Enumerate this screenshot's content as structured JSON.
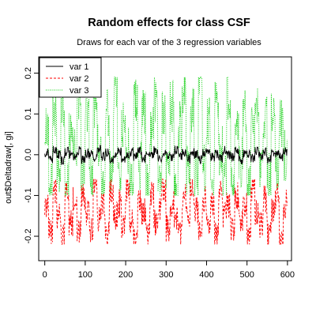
{
  "chart_data": {
    "type": "line",
    "title": "Random effects for class CSF",
    "subtitle": "Draws for each var of the 3 regression variables",
    "xlabel": "",
    "ylabel": "out$Deltadraw[, gi]",
    "xlim": [
      -15,
      610
    ],
    "ylim": [
      -0.26,
      0.24
    ],
    "x_ticks": [
      0,
      100,
      200,
      300,
      400,
      500,
      600
    ],
    "y_ticks": [
      -0.2,
      -0.1,
      0.0,
      0.1,
      0.2
    ],
    "x_tick_labels": [
      "0",
      "100",
      "200",
      "300",
      "400",
      "500",
      "600"
    ],
    "y_tick_labels": [
      "-0.2",
      "-0.1",
      "0.0",
      "0.1",
      "0.2"
    ],
    "legend_position": "top-left",
    "n_draws": 600,
    "series": [
      {
        "name": "var 1",
        "color": "#000000",
        "line_style": "solid",
        "center": 0.0,
        "approx_range": [
          -0.025,
          0.025
        ],
        "values_sampled_every_10": [
          0.005,
          -0.01,
          0.012,
          0.0,
          -0.015,
          0.008,
          0.002,
          -0.006,
          0.01,
          -0.012,
          0.004,
          0.0,
          -0.008,
          0.014,
          -0.004,
          0.006,
          -0.01,
          0.002,
          0.009,
          -0.013,
          0.0,
          0.007,
          -0.005,
          0.011,
          -0.009,
          0.003,
          -0.002,
          0.01,
          -0.011,
          0.006,
          0.0,
          -0.007,
          0.013,
          -0.003,
          0.005,
          -0.01,
          0.008,
          0.001,
          -0.012,
          0.004,
          0.009,
          -0.006,
          0.002,
          -0.009,
          0.011,
          0.0,
          -0.004,
          0.007,
          -0.013,
          0.005,
          0.003,
          -0.008,
          0.01,
          -0.002,
          0.006,
          -0.011,
          0.004,
          0.0,
          -0.006,
          0.008
        ]
      },
      {
        "name": "var 2",
        "color": "#ff0000",
        "line_style": "dashed",
        "center": -0.13,
        "approx_range": [
          -0.22,
          -0.06
        ],
        "values_sampled_every_10": [
          -0.12,
          -0.19,
          -0.09,
          -0.15,
          -0.2,
          -0.08,
          -0.17,
          -0.11,
          -0.18,
          -0.1,
          -0.14,
          -0.19,
          -0.07,
          -0.16,
          -0.13,
          -0.2,
          -0.09,
          -0.15,
          -0.12,
          -0.18,
          -0.08,
          -0.16,
          -0.21,
          -0.11,
          -0.14,
          -0.19,
          -0.1,
          -0.17,
          -0.13,
          -0.08,
          -0.18,
          -0.12,
          -0.15,
          -0.2,
          -0.1,
          -0.16,
          -0.09,
          -0.14,
          -0.19,
          -0.11,
          -0.17,
          -0.12,
          -0.2,
          -0.09,
          -0.15,
          -0.13,
          -0.18,
          -0.1,
          -0.16,
          -0.12,
          -0.19,
          -0.08,
          -0.14,
          -0.17,
          -0.11,
          -0.2,
          -0.13,
          -0.1,
          -0.22,
          -0.12
        ]
      },
      {
        "name": "var 3",
        "color": "#00cc00",
        "line_style": "dotted",
        "center": 0.0,
        "approx_range": [
          -0.1,
          0.19
        ],
        "values_sampled_every_10": [
          0.05,
          -0.06,
          0.1,
          -0.03,
          0.12,
          -0.08,
          0.07,
          0.0,
          0.14,
          -0.05,
          0.09,
          -0.07,
          0.13,
          0.02,
          -0.09,
          0.11,
          -0.04,
          0.15,
          -0.06,
          0.08,
          0.01,
          -0.08,
          0.12,
          -0.03,
          0.1,
          -0.07,
          0.06,
          0.14,
          -0.05,
          0.09,
          -0.02,
          0.12,
          -0.09,
          0.07,
          0.16,
          -0.04,
          0.11,
          -0.06,
          0.19,
          -0.03,
          0.08,
          -0.08,
          0.13,
          0.01,
          -0.05,
          0.15,
          -0.07,
          0.1,
          -0.02,
          0.12,
          -0.09,
          0.06,
          0.14,
          -0.04,
          0.09,
          -0.06,
          0.11,
          -0.03,
          0.07,
          0.0
        ]
      }
    ]
  }
}
